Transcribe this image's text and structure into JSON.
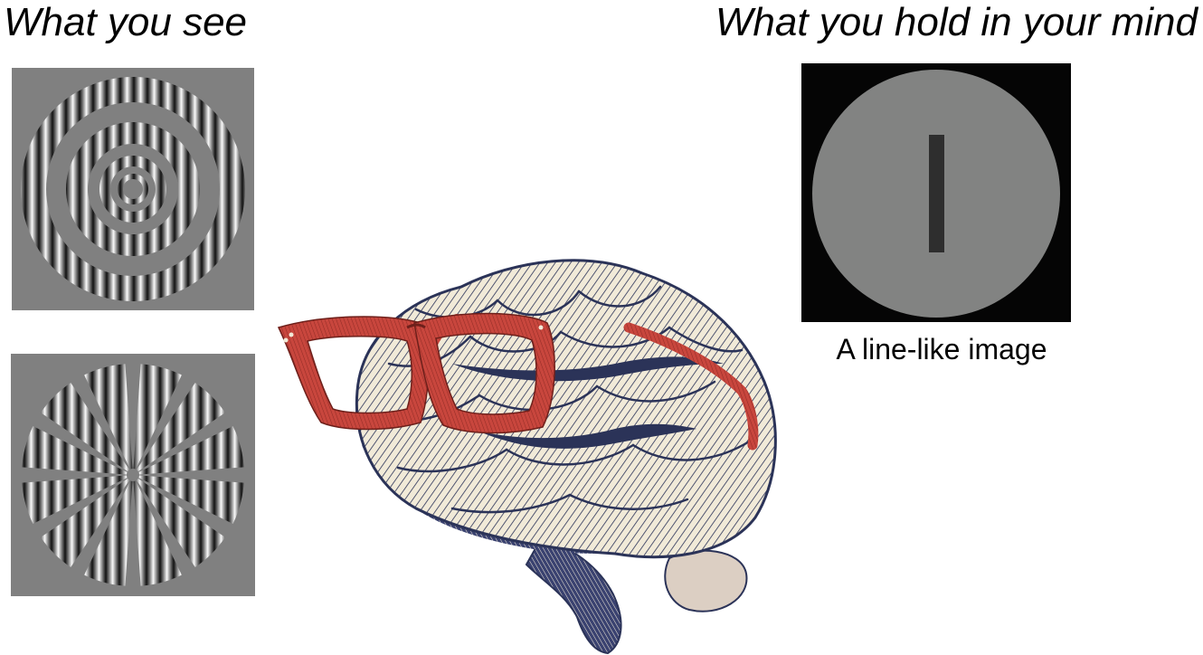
{
  "headings": {
    "left": "What you see",
    "right": "What you hold in your mind"
  },
  "right_panel": {
    "caption": "A line-like image"
  },
  "colors": {
    "stimulus_gray": "#808080",
    "mind_background": "#050505",
    "mind_circle": "#828382",
    "mind_line": "#2e2e2e",
    "glasses_red": "#c8463d",
    "brain_cream": "#f1ead8",
    "brain_ink": "#2b3358"
  },
  "icons": {
    "top_left_panel": "concentric-grating-rings",
    "bottom_left_panel": "radial-grating-spokes",
    "center": "brain-wearing-glasses"
  }
}
